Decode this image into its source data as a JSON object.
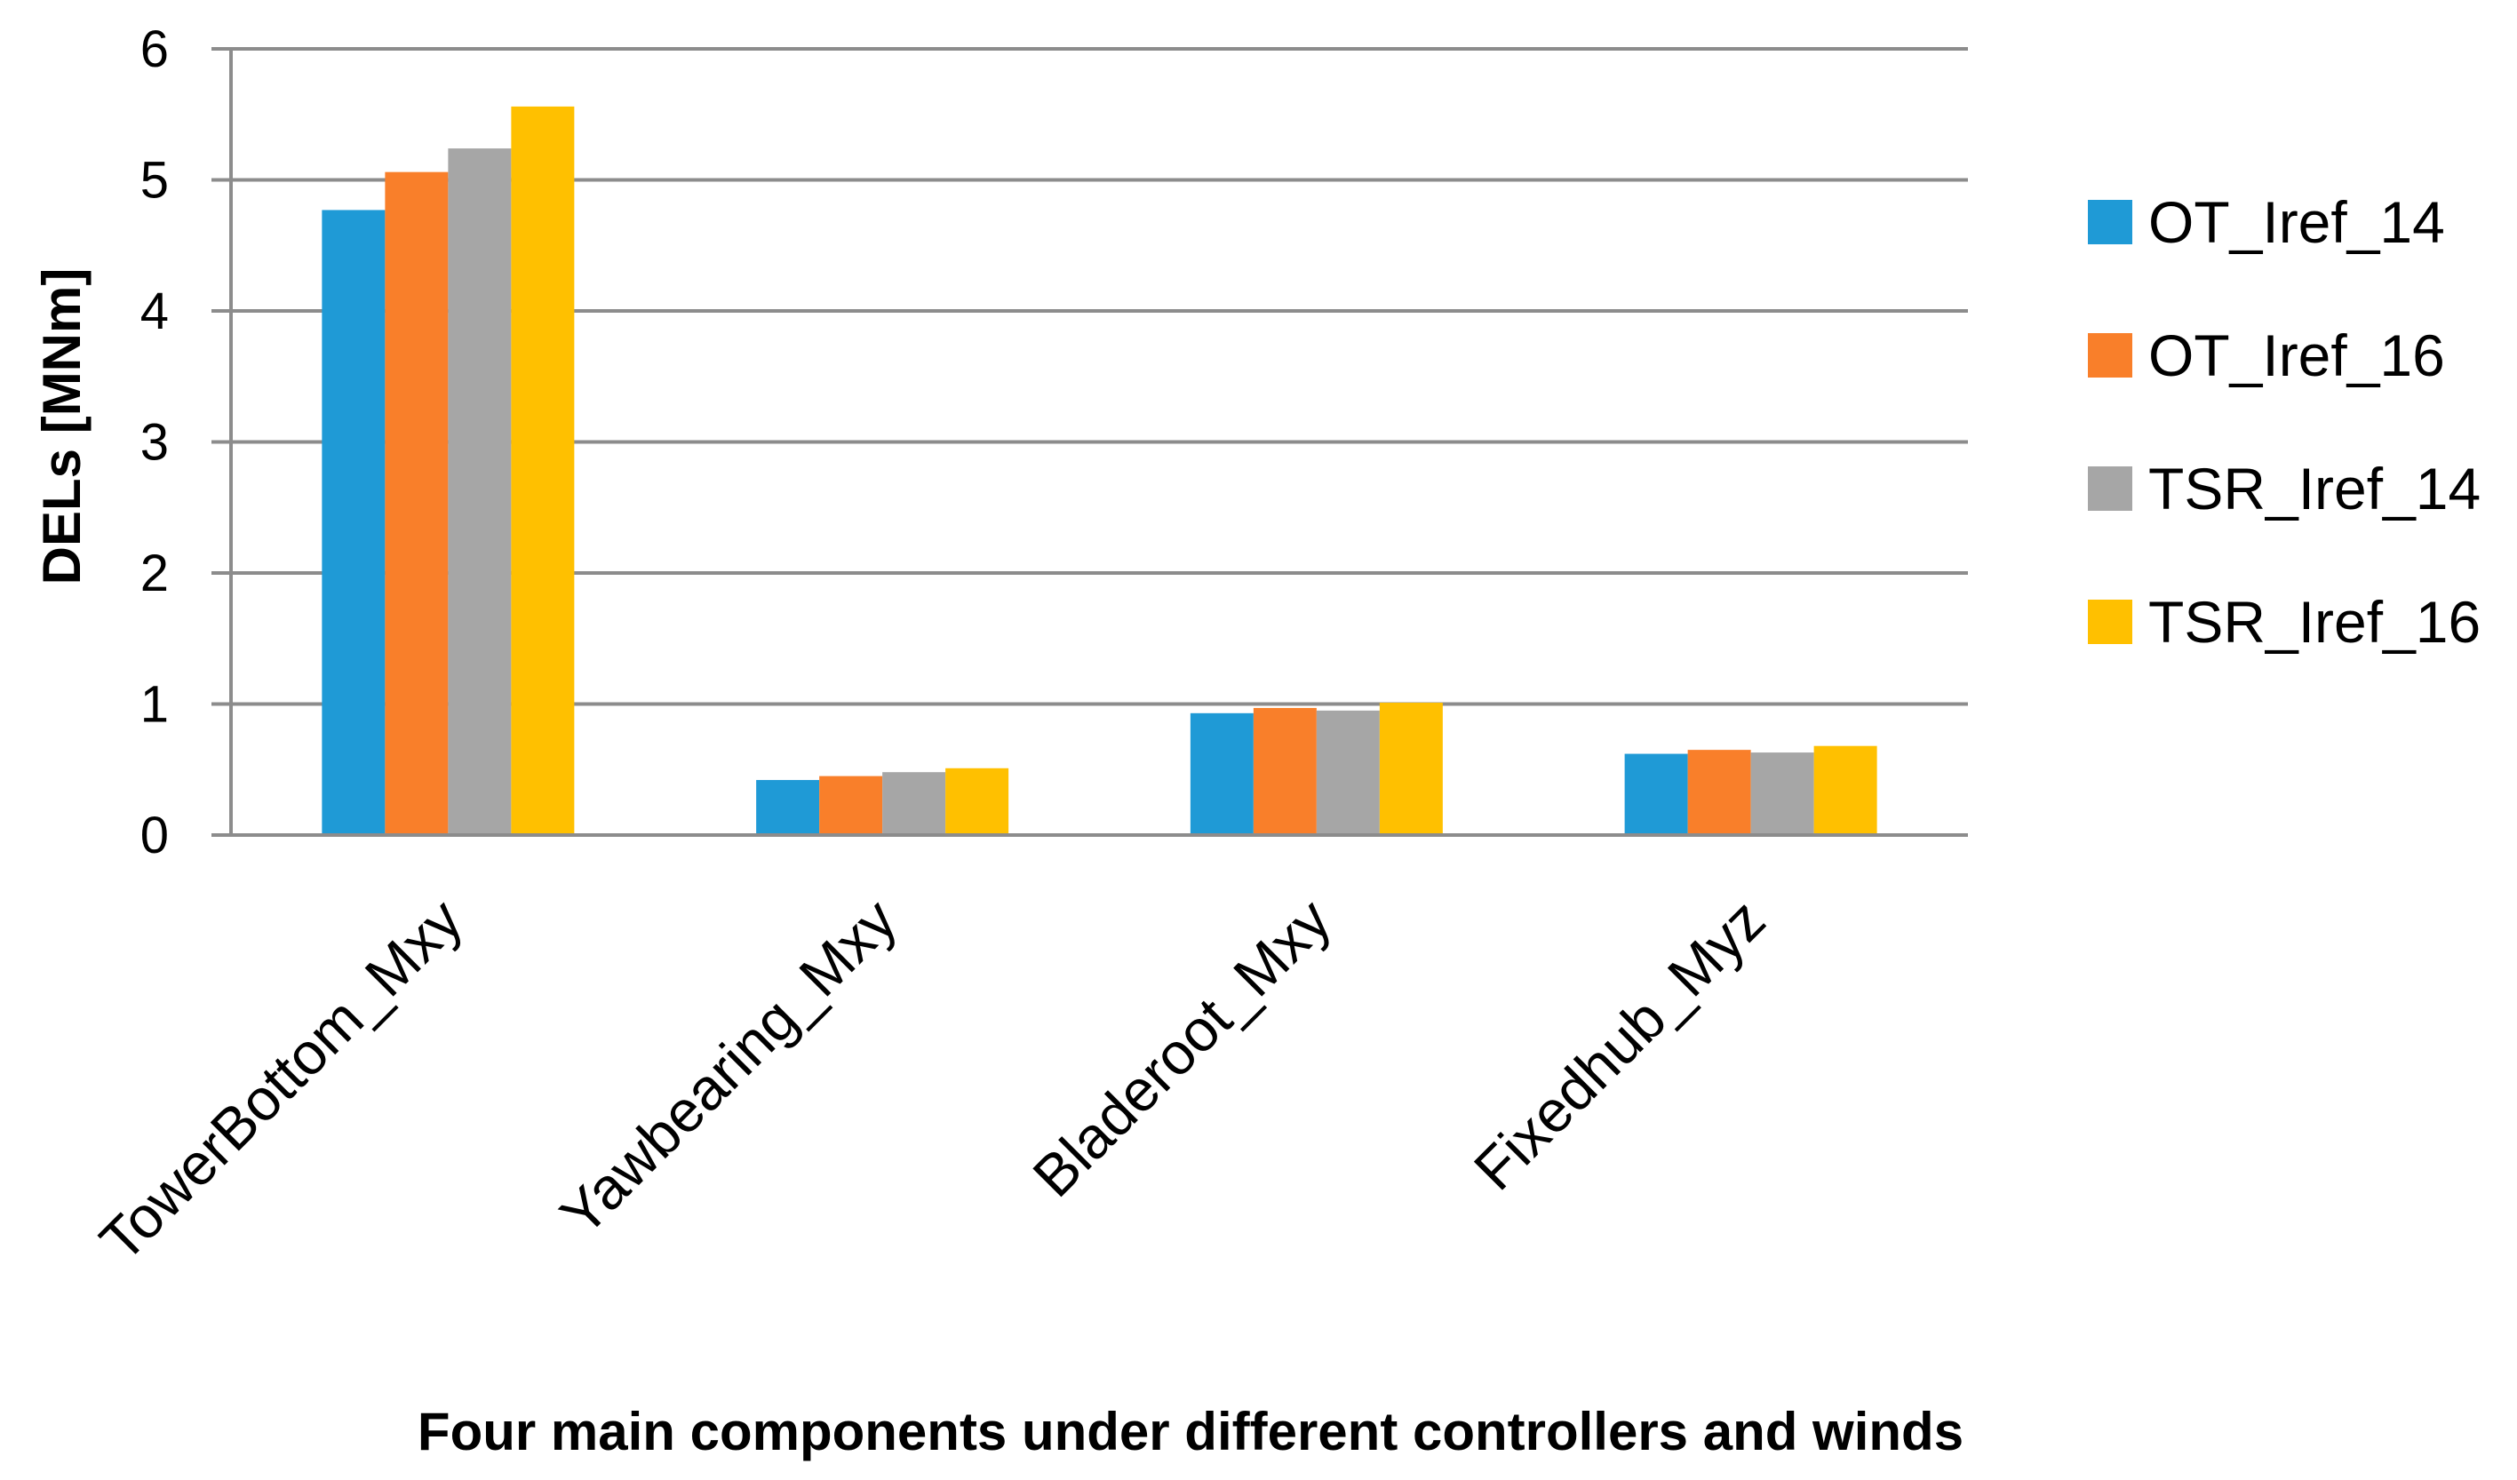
{
  "chart_data": {
    "type": "bar",
    "title": "",
    "xlabel": "Four main components under different controllers and winds",
    "ylabel": "DELs [MNm]",
    "ylim": [
      0,
      6
    ],
    "yticks": [
      0,
      1,
      2,
      3,
      4,
      5,
      6
    ],
    "grid": true,
    "legend_position": "right",
    "categories": [
      "TowerBottom_Mxy",
      "Yawbearing_Mxy",
      "Bladeroot_Mxy",
      "Fixedhub_Myz"
    ],
    "series": [
      {
        "name": "OT_Iref_14",
        "color": "#1f9ad6",
        "values": [
          4.77,
          0.42,
          0.93,
          0.62
        ]
      },
      {
        "name": "OT_Iref_16",
        "color": "#f97f2a",
        "values": [
          5.06,
          0.45,
          0.97,
          0.65
        ]
      },
      {
        "name": "TSR_Iref_14",
        "color": "#a6a6a6",
        "values": [
          5.24,
          0.48,
          0.95,
          0.63
        ]
      },
      {
        "name": "TSR_Iref_16",
        "color": "#ffc000",
        "values": [
          5.56,
          0.51,
          1.01,
          0.68
        ]
      }
    ]
  }
}
